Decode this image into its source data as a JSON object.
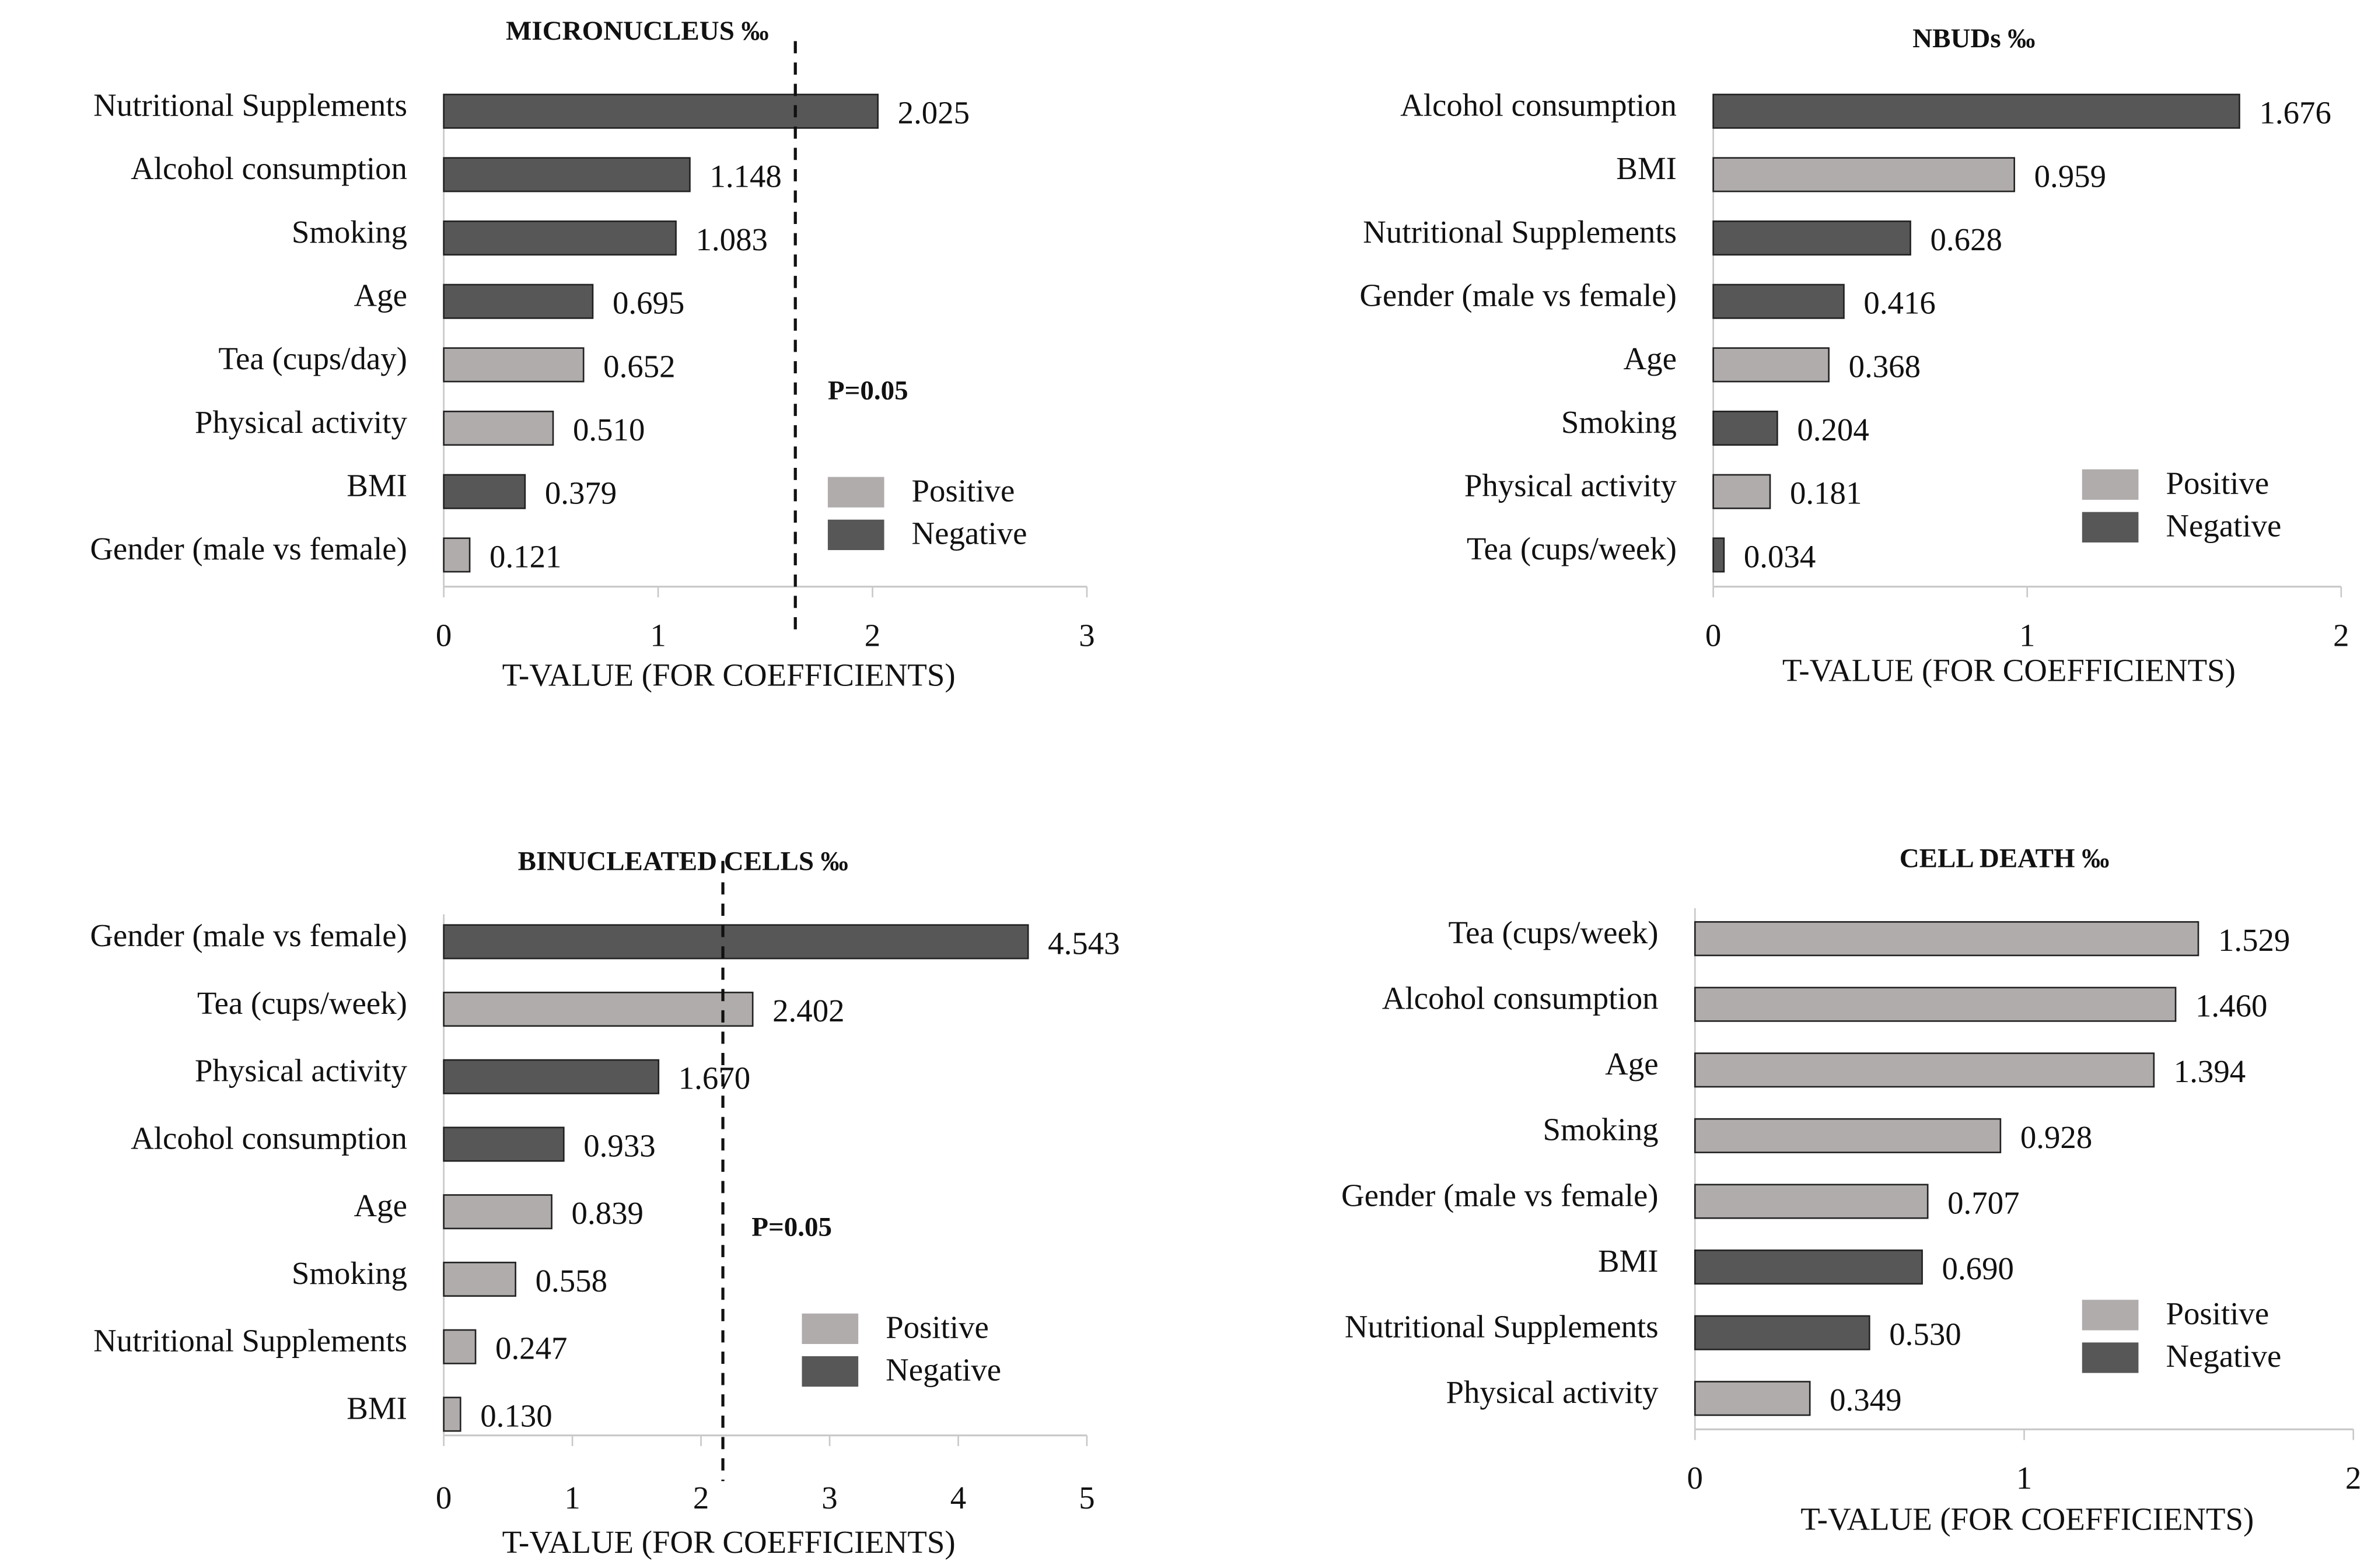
{
  "colors": {
    "positive": "#afacab",
    "negative": "#575757",
    "axis": "#c8c8c8",
    "text": "#111111"
  },
  "chart_data": [
    {
      "type": "bar",
      "orientation": "horizontal",
      "title": "MICRONUCLEUS ‰",
      "xlabel": "T-VALUE (FOR COEFFICIENTS)",
      "xlim": [
        0,
        3
      ],
      "xticks": [
        "0",
        "1",
        "2",
        "3"
      ],
      "legend": {
        "position": "bottom-right",
        "entries": [
          "Positive",
          "Negative"
        ]
      },
      "threshold": {
        "value": 1.64,
        "label": "P=0.05"
      },
      "categories": [
        "Nutritional Supplements",
        "Alcohol consumption",
        "Smoking",
        "Age",
        "Tea (cups/day)",
        "Physical activity",
        "BMI",
        "Gender (male vs female)"
      ],
      "values": [
        2.025,
        1.148,
        1.083,
        0.695,
        0.652,
        0.51,
        0.379,
        0.121
      ],
      "value_labels": [
        "2.025",
        "1.148",
        "1.083",
        "0.695",
        "0.652",
        "0.510",
        "0.379",
        "0.121"
      ],
      "signs": [
        "Negative",
        "Negative",
        "Negative",
        "Negative",
        "Positive",
        "Positive",
        "Negative",
        "Positive"
      ]
    },
    {
      "type": "bar",
      "orientation": "horizontal",
      "title": "NBUDs ‰",
      "xlabel": "T-VALUE (FOR COEFFICIENTS)",
      "xlim": [
        0,
        2
      ],
      "xticks": [
        "0",
        "1",
        "2"
      ],
      "legend": {
        "position": "bottom-right",
        "entries": [
          "Positive",
          "Negative"
        ]
      },
      "threshold": null,
      "categories": [
        "Alcohol consumption",
        "BMI",
        "Nutritional Supplements",
        "Gender (male vs female)",
        "Age",
        "Smoking",
        "Physical activity",
        "Tea (cups/week)"
      ],
      "values": [
        1.676,
        0.959,
        0.628,
        0.416,
        0.368,
        0.204,
        0.181,
        0.034
      ],
      "value_labels": [
        "1.676",
        "0.959",
        "0.628",
        "0.416",
        "0.368",
        "0.204",
        "0.181",
        "0.034"
      ],
      "signs": [
        "Negative",
        "Positive",
        "Negative",
        "Negative",
        "Positive",
        "Negative",
        "Positive",
        "Negative"
      ]
    },
    {
      "type": "bar",
      "orientation": "horizontal",
      "title": "BINUCLEATED CELLS ‰",
      "xlabel": "T-VALUE (FOR COEFFICIENTS)",
      "xlim": [
        0,
        5
      ],
      "xticks": [
        "0",
        "1",
        "2",
        "3",
        "4",
        "5"
      ],
      "legend": {
        "position": "bottom-right",
        "entries": [
          "Positive",
          "Negative"
        ]
      },
      "threshold": {
        "value": 2.17,
        "label": "P=0.05"
      },
      "categories": [
        "Gender (male vs female)",
        "Tea (cups/week)",
        "Physical activity",
        "Alcohol consumption",
        "Age",
        "Smoking",
        "Nutritional Supplements",
        "BMI"
      ],
      "values": [
        4.543,
        2.402,
        1.67,
        0.933,
        0.839,
        0.558,
        0.247,
        0.13
      ],
      "value_labels": [
        "4.543",
        "2.402",
        "1.670",
        "0.933",
        "0.839",
        "0.558",
        "0.247",
        "0.130"
      ],
      "signs": [
        "Negative",
        "Positive",
        "Negative",
        "Negative",
        "Positive",
        "Positive",
        "Positive",
        "Positive"
      ]
    },
    {
      "type": "bar",
      "orientation": "horizontal",
      "title": "CELL DEATH ‰",
      "xlabel": "T-VALUE (FOR COEFFICIENTS)",
      "xlim": [
        0,
        2
      ],
      "xticks": [
        "0",
        "1",
        "2"
      ],
      "legend": {
        "position": "bottom-right",
        "entries": [
          "Positive",
          "Negative"
        ]
      },
      "threshold": null,
      "categories": [
        "Tea (cups/week)",
        "Alcohol consumption",
        "Age",
        "Smoking",
        "Gender (male vs female)",
        "BMI",
        "Nutritional Supplements",
        "Physical activity"
      ],
      "values": [
        1.529,
        1.46,
        1.394,
        0.928,
        0.707,
        0.69,
        0.53,
        0.349
      ],
      "value_labels": [
        "1.529",
        "1.460",
        "1.394",
        "0.928",
        "0.707",
        "0.690",
        "0.530",
        "0.349"
      ],
      "signs": [
        "Positive",
        "Positive",
        "Positive",
        "Positive",
        "Positive",
        "Negative",
        "Negative",
        "Positive"
      ]
    }
  ]
}
